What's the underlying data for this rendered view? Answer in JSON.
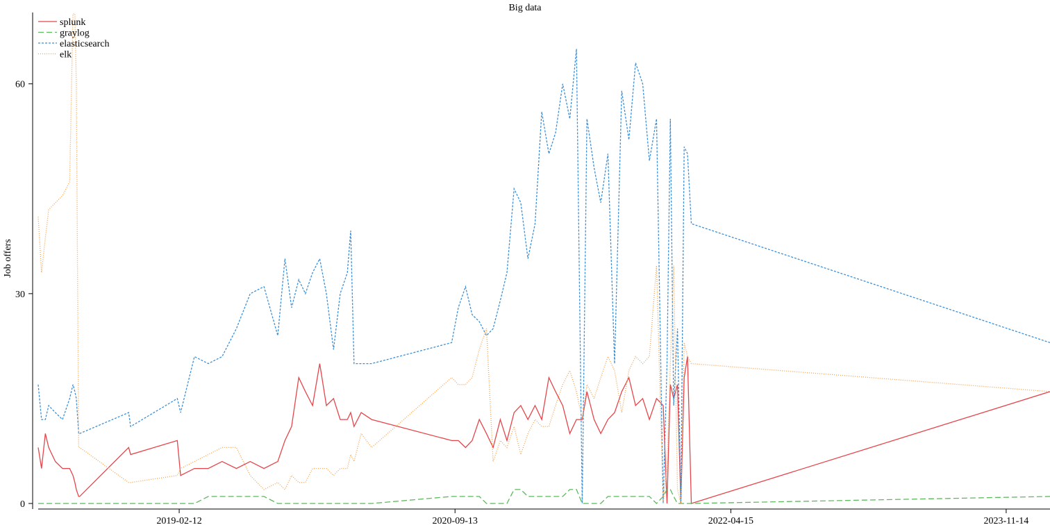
{
  "chart_data": {
    "type": "line",
    "title": "Big data",
    "y_label": "Job offers",
    "legend": "upper-left",
    "x": [
      "2018-04-22",
      "2018-04-29",
      "2018-05-07",
      "2018-05-14",
      "2018-05-28",
      "2018-06-12",
      "2018-06-27",
      "2018-07-04",
      "2018-07-08",
      "2018-07-11",
      "2018-07-16",
      "2018-07-18",
      "2018-10-29",
      "2018-11-02",
      "2019-02-08",
      "2019-02-15",
      "2019-03-16",
      "2019-04-14",
      "2019-05-13",
      "2019-06-12",
      "2019-07-11",
      "2019-08-09",
      "2019-09-07",
      "2019-09-22",
      "2019-10-06",
      "2019-10-21",
      "2019-11-04",
      "2019-11-19",
      "2019-12-04",
      "2019-12-18",
      "2020-01-02",
      "2020-01-16",
      "2020-01-31",
      "2020-02-07",
      "2020-02-14",
      "2020-02-29",
      "2020-03-22",
      "2020-09-06",
      "2020-09-20",
      "2020-10-05",
      "2020-10-19",
      "2020-11-03",
      "2020-11-18",
      "2020-12-02",
      "2020-12-17",
      "2020-12-31",
      "2021-01-15",
      "2021-01-29",
      "2021-02-13",
      "2021-02-28",
      "2021-03-14",
      "2021-03-29",
      "2021-04-12",
      "2021-04-27",
      "2021-05-12",
      "2021-05-26",
      "2021-06-07",
      "2021-06-17",
      "2021-07-02",
      "2021-07-16",
      "2021-07-31",
      "2021-08-14",
      "2021-08-29",
      "2021-09-13",
      "2021-09-27",
      "2021-10-12",
      "2021-10-26",
      "2021-11-10",
      "2021-11-24",
      "2021-12-02",
      "2021-12-09",
      "2021-12-16",
      "2021-12-24",
      "2021-12-31",
      "2022-01-07",
      "2022-01-14",
      "2022-01-22",
      "2024-02-14"
    ],
    "series": [
      {
        "name": "splunk",
        "color": "#e5454a",
        "dash": "",
        "values": [
          8,
          5,
          10,
          8,
          6,
          5,
          5,
          4,
          3,
          2,
          1,
          1,
          8,
          7,
          9,
          4,
          5,
          5,
          6,
          5,
          6,
          5,
          6,
          9,
          11,
          18,
          16,
          14,
          20,
          14,
          15,
          12,
          12,
          13,
          11,
          13,
          12,
          9,
          9,
          8,
          9,
          12,
          10,
          8,
          12,
          9,
          13,
          14,
          12,
          14,
          12,
          18,
          16,
          14,
          10,
          12,
          12,
          16,
          12,
          10,
          12,
          13,
          16,
          18,
          14,
          15,
          12,
          15,
          14,
          0,
          17,
          15,
          17,
          0,
          18,
          21,
          0,
          16
        ]
      },
      {
        "name": "graylog",
        "color": "#5cb85c",
        "dash": "8,4",
        "values": [
          0,
          0,
          0,
          0,
          0,
          0,
          0,
          0,
          0,
          0,
          0,
          0,
          0,
          0,
          0,
          0,
          0,
          1,
          1,
          1,
          1,
          1,
          0,
          0,
          0,
          0,
          0,
          0,
          0,
          0,
          0,
          0,
          0,
          0,
          0,
          0,
          0,
          1,
          1,
          1,
          1,
          1,
          0,
          0,
          0,
          0,
          2,
          2,
          1,
          1,
          1,
          1,
          1,
          1,
          2,
          2,
          0,
          0,
          0,
          0,
          1,
          1,
          1,
          1,
          1,
          1,
          1,
          0,
          1,
          2,
          2,
          1,
          0,
          0,
          0,
          0,
          0,
          1
        ]
      },
      {
        "name": "elasticsearch",
        "color": "#3b8fd6",
        "dash": "3,2",
        "values": [
          17,
          12,
          12,
          14,
          13,
          12,
          15,
          17,
          16,
          15,
          10,
          10,
          13,
          11,
          15,
          13,
          21,
          20,
          21,
          25,
          30,
          31,
          24,
          35,
          28,
          32,
          30,
          33,
          35,
          30,
          22,
          30,
          33,
          39,
          20,
          20,
          20,
          23,
          28,
          31,
          27,
          26,
          24,
          25,
          29,
          33,
          45,
          43,
          35,
          40,
          56,
          50,
          53,
          60,
          55,
          65,
          0,
          55,
          48,
          43,
          50,
          20,
          59,
          52,
          63,
          60,
          49,
          55,
          0,
          20,
          55,
          14,
          25,
          0,
          51,
          50,
          40,
          23
        ]
      },
      {
        "name": "elk",
        "color": "#f5a04a",
        "dash": "1,2",
        "values": [
          41,
          33,
          38,
          42,
          43,
          44,
          46,
          70,
          70,
          60,
          8,
          8,
          3,
          3,
          4,
          5,
          6,
          7,
          8,
          8,
          4,
          2,
          3,
          2,
          4,
          3,
          3,
          5,
          5,
          5,
          4,
          5,
          5,
          7,
          6,
          10,
          8,
          18,
          17,
          17,
          18,
          22,
          25,
          6,
          9,
          8,
          11,
          7,
          10,
          12,
          11,
          11,
          14,
          17,
          19,
          16,
          12,
          17,
          15,
          18,
          21,
          19,
          13,
          19,
          21,
          20,
          21,
          34,
          0,
          5,
          20,
          34,
          2,
          0,
          23,
          21,
          20,
          16
        ]
      }
    ],
    "xlim": [
      "2018-04-22",
      "2024-02-14"
    ],
    "xticks": [
      "2019-02-12",
      "2020-09-13",
      "2022-04-15",
      "2023-11-14"
    ],
    "ylim": [
      0,
      70
    ],
    "yticks": [
      0,
      30,
      60
    ]
  }
}
